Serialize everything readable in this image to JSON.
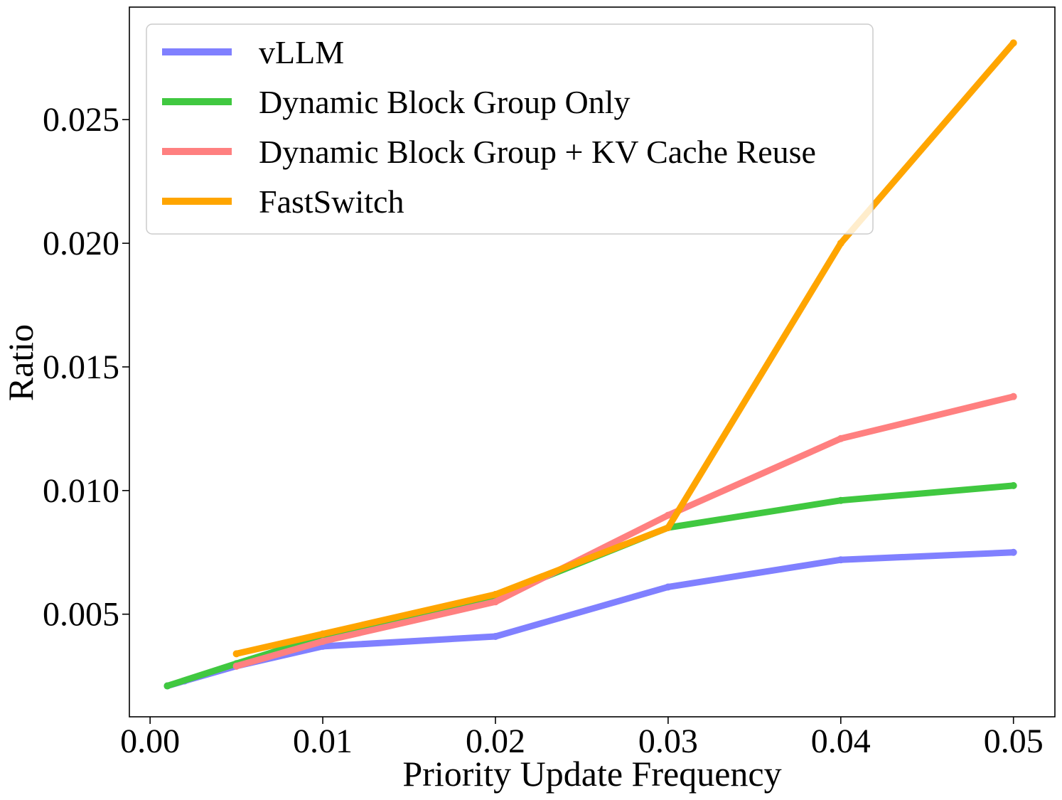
{
  "chart_data": {
    "type": "line",
    "title": "",
    "xlabel": "Priority Update Frequency",
    "ylabel": "Ratio",
    "xlim": [
      -0.0012,
      0.0524
    ],
    "ylim": [
      0.00085,
      0.02955
    ],
    "xticks": [
      0.0,
      0.01,
      0.02,
      0.03,
      0.04,
      0.05
    ],
    "xtick_labels": [
      "0.00",
      "0.01",
      "0.02",
      "0.03",
      "0.04",
      "0.05"
    ],
    "yticks": [
      0.005,
      0.01,
      0.015,
      0.02,
      0.025
    ],
    "ytick_labels": [
      "0.005",
      "0.010",
      "0.015",
      "0.020",
      "0.025"
    ],
    "grid": false,
    "legend_position": "top-left",
    "series": [
      {
        "name": "vLLM",
        "color": "#8080ff",
        "x": [
          0.001,
          0.002,
          0.005,
          0.01,
          0.02,
          0.03,
          0.04,
          0.05
        ],
        "values": [
          0.0021,
          0.0023,
          0.0029,
          0.0037,
          0.0041,
          0.0061,
          0.0072,
          0.0075
        ]
      },
      {
        "name": "Dynamic Block Group Only",
        "color": "#40c840",
        "x": [
          0.001,
          0.005,
          0.01,
          0.02,
          0.03,
          0.04,
          0.05
        ],
        "values": [
          0.0021,
          0.003,
          0.0041,
          0.0057,
          0.0085,
          0.0096,
          0.0102
        ]
      },
      {
        "name": "Dynamic Block Group + KV Cache Reuse",
        "color": "#ff8080",
        "x": [
          0.005,
          0.01,
          0.02,
          0.03,
          0.04,
          0.05
        ],
        "values": [
          0.0029,
          0.0039,
          0.0055,
          0.009,
          0.0121,
          0.0138
        ]
      },
      {
        "name": "FastSwitch",
        "color": "#ffa500",
        "x": [
          0.005,
          0.01,
          0.02,
          0.03,
          0.04,
          0.05
        ],
        "values": [
          0.0034,
          0.0042,
          0.0058,
          0.0085,
          0.02,
          0.0281
        ]
      }
    ]
  }
}
